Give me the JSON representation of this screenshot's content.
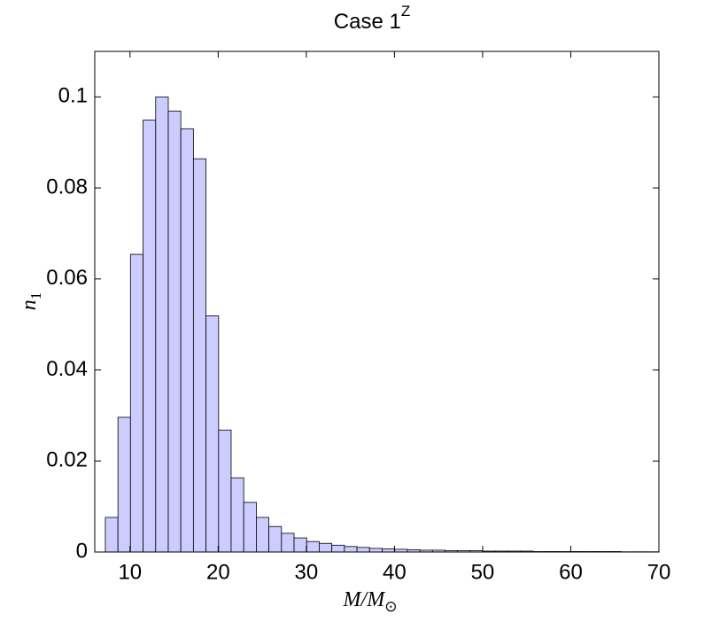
{
  "chart_data": {
    "type": "histogram",
    "title": "Case 1",
    "title_superscript": "Z",
    "xlabel": "M/M",
    "xlabel_subscript": "⊙",
    "ylabel": "n",
    "ylabel_subscript": "1",
    "bins": [
      7.2,
      8.63,
      10.05,
      11.48,
      12.91,
      14.34,
      15.76,
      17.19,
      18.62,
      20.05,
      21.47,
      22.9,
      24.33,
      25.75,
      27.18,
      28.61,
      30.04,
      31.46,
      32.89,
      34.32,
      35.75,
      37.17,
      38.6,
      40.03,
      41.46,
      42.88,
      44.31,
      45.74,
      47.16,
      48.59,
      50.02,
      51.45,
      52.87,
      54.3,
      55.73,
      57.16,
      58.58,
      60.01,
      61.44,
      62.87,
      64.29,
      65.72,
      67.15,
      68.58,
      70.0
    ],
    "values": [
      0.0076,
      0.0296,
      0.0654,
      0.0949,
      0.1,
      0.0969,
      0.093,
      0.0864,
      0.0519,
      0.0268,
      0.0163,
      0.0109,
      0.0076,
      0.0056,
      0.0041,
      0.0031,
      0.0023,
      0.0019,
      0.0015,
      0.0012,
      0.001,
      0.0008,
      0.0007,
      0.0006,
      0.0005,
      0.0004,
      0.0004,
      0.0003,
      0.0003,
      0.0003,
      0.0002,
      0.0002,
      0.0002,
      0.0002,
      0.0001,
      0.0001,
      0.0001,
      0.0001,
      0.0001,
      0.0001,
      0.0001,
      5e-05,
      5e-05,
      5e-05
    ],
    "color": "#ccccff",
    "xlim": [
      6,
      70
    ],
    "xticks": [
      10,
      20,
      30,
      40,
      50,
      60,
      70
    ],
    "ylim": [
      0,
      0.11
    ],
    "yticks": [
      0,
      0.02,
      0.04,
      0.06,
      0.08,
      0.1
    ]
  }
}
